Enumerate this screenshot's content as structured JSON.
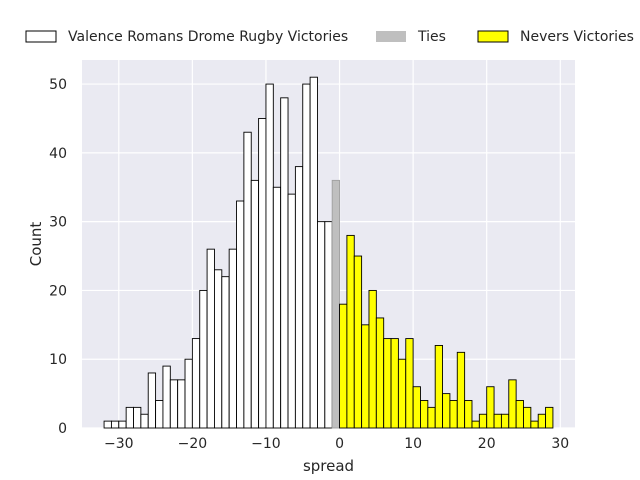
{
  "chart_data": {
    "type": "bar",
    "title": "",
    "xlabel": "spread",
    "ylabel": "Count",
    "xlim": [
      -35,
      32
    ],
    "ylim": [
      0,
      53.5
    ],
    "xticks": [
      -30,
      -20,
      -10,
      0,
      10,
      20,
      30
    ],
    "xtick_labels": [
      "−30",
      "−20",
      "−10",
      "0",
      "10",
      "20",
      "30"
    ],
    "yticks": [
      0,
      10,
      20,
      30,
      40,
      50
    ],
    "ytick_labels": [
      "0",
      "10",
      "20",
      "30",
      "40",
      "50"
    ],
    "grid": true,
    "bin_width": 1,
    "legend_position": "top",
    "series": [
      {
        "name": "Valence Romans Drome Rugby Victories",
        "color": "#ffffff",
        "edge": "#000000",
        "bins": [
          {
            "x": -31.5,
            "y": 1
          },
          {
            "x": -30.5,
            "y": 1
          },
          {
            "x": -29.5,
            "y": 1
          },
          {
            "x": -28.5,
            "y": 3
          },
          {
            "x": -27.5,
            "y": 3
          },
          {
            "x": -26.5,
            "y": 2
          },
          {
            "x": -25.5,
            "y": 8
          },
          {
            "x": -24.5,
            "y": 4
          },
          {
            "x": -23.5,
            "y": 9
          },
          {
            "x": -22.5,
            "y": 7
          },
          {
            "x": -21.5,
            "y": 7
          },
          {
            "x": -20.5,
            "y": 10
          },
          {
            "x": -19.5,
            "y": 13
          },
          {
            "x": -18.5,
            "y": 20
          },
          {
            "x": -17.5,
            "y": 26
          },
          {
            "x": -16.5,
            "y": 23
          },
          {
            "x": -15.5,
            "y": 22
          },
          {
            "x": -14.5,
            "y": 26
          },
          {
            "x": -13.5,
            "y": 33
          },
          {
            "x": -12.5,
            "y": 43
          },
          {
            "x": -11.5,
            "y": 36
          },
          {
            "x": -10.5,
            "y": 45
          },
          {
            "x": -9.5,
            "y": 50
          },
          {
            "x": -8.5,
            "y": 35
          },
          {
            "x": -7.5,
            "y": 48
          },
          {
            "x": -6.5,
            "y": 34
          },
          {
            "x": -5.5,
            "y": 38
          },
          {
            "x": -4.5,
            "y": 50
          },
          {
            "x": -3.5,
            "y": 51
          },
          {
            "x": -2.5,
            "y": 30
          },
          {
            "x": -1.5,
            "y": 30
          }
        ]
      },
      {
        "name": "Ties",
        "color": "#bfbfbf",
        "edge": "#a0a0a0",
        "bins": [
          {
            "x": -0.5,
            "y": 36
          }
        ]
      },
      {
        "name": "Nevers Victories",
        "color": "#ffff00",
        "edge": "#000000",
        "bins": [
          {
            "x": 0.5,
            "y": 18
          },
          {
            "x": 1.5,
            "y": 28
          },
          {
            "x": 2.5,
            "y": 25
          },
          {
            "x": 3.5,
            "y": 15
          },
          {
            "x": 4.5,
            "y": 20
          },
          {
            "x": 5.5,
            "y": 16
          },
          {
            "x": 6.5,
            "y": 13
          },
          {
            "x": 7.5,
            "y": 13
          },
          {
            "x": 8.5,
            "y": 10
          },
          {
            "x": 9.5,
            "y": 13
          },
          {
            "x": 10.5,
            "y": 6
          },
          {
            "x": 11.5,
            "y": 4
          },
          {
            "x": 12.5,
            "y": 3
          },
          {
            "x": 13.5,
            "y": 12
          },
          {
            "x": 14.5,
            "y": 5
          },
          {
            "x": 15.5,
            "y": 4
          },
          {
            "x": 16.5,
            "y": 11
          },
          {
            "x": 17.5,
            "y": 4
          },
          {
            "x": 18.5,
            "y": 1
          },
          {
            "x": 19.5,
            "y": 2
          },
          {
            "x": 20.5,
            "y": 6
          },
          {
            "x": 21.5,
            "y": 2
          },
          {
            "x": 22.5,
            "y": 2
          },
          {
            "x": 23.5,
            "y": 7
          },
          {
            "x": 24.5,
            "y": 4
          },
          {
            "x": 25.5,
            "y": 3
          },
          {
            "x": 26.5,
            "y": 1
          },
          {
            "x": 27.5,
            "y": 2
          },
          {
            "x": 28.5,
            "y": 3
          }
        ]
      }
    ]
  },
  "colors": {
    "plot_background": "#eaeaf2",
    "grid": "#ffffff",
    "text": "#262626"
  }
}
